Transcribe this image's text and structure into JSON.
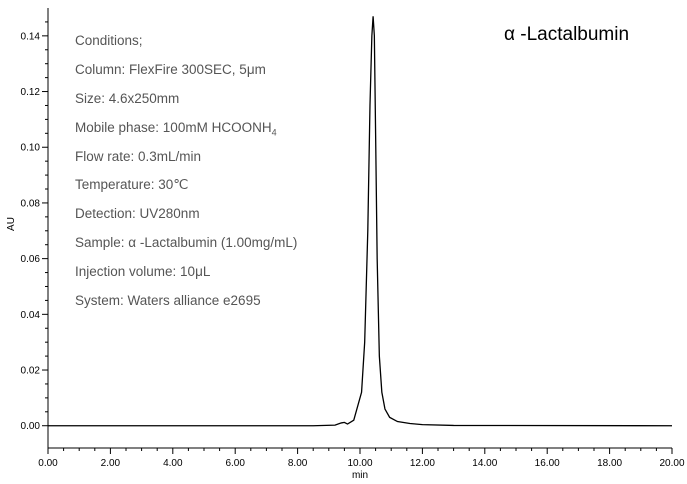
{
  "chart_data": {
    "type": "line",
    "title": "α -Lactalbumin",
    "xlabel": "min",
    "ylabel": "AU",
    "xlim": [
      0,
      20
    ],
    "ylim": [
      -0.008,
      0.15
    ],
    "x_ticks": [
      "0.00",
      "2.00",
      "4.00",
      "6.00",
      "8.00",
      "10.00",
      "12.00",
      "14.00",
      "16.00",
      "18.00",
      "20.00"
    ],
    "y_ticks": [
      "0.00",
      "0.02",
      "0.04",
      "0.06",
      "0.08",
      "0.10",
      "0.12",
      "0.14"
    ],
    "x_tick_values": [
      0,
      2,
      4,
      6,
      8,
      10,
      12,
      14,
      16,
      18,
      20
    ],
    "y_tick_values": [
      0,
      0.02,
      0.04,
      0.06,
      0.08,
      0.1,
      0.12,
      0.14
    ],
    "grid": false,
    "series": [
      {
        "x": [
          0,
          8.5,
          9.2,
          9.4,
          9.5,
          9.6,
          9.8,
          9.95,
          10.05,
          10.15,
          10.25,
          10.32,
          10.38,
          10.42,
          10.46,
          10.5,
          10.55,
          10.62,
          10.7,
          10.8,
          10.95,
          11.2,
          11.6,
          12.0,
          13.0,
          20.0
        ],
        "y": [
          0,
          0,
          0.0002,
          0.001,
          0.0012,
          0.0006,
          0.002,
          0.008,
          0.012,
          0.03,
          0.07,
          0.115,
          0.14,
          0.147,
          0.14,
          0.105,
          0.06,
          0.025,
          0.012,
          0.006,
          0.003,
          0.0015,
          0.0008,
          0.0004,
          0.0001,
          0
        ]
      }
    ]
  },
  "conditions": {
    "heading": "Conditions;",
    "column": "Column: FlexFire 300SEC, 5μm",
    "size": "Size: 4.6x250mm",
    "mobile_phase": "Mobile phase: 100mM HCOONH",
    "mobile_phase_sub": "4",
    "flow_rate": "Flow rate: 0.3mL/min",
    "temperature": "Temperature: 30℃",
    "detection": "Detection: UV280nm",
    "sample": "Sample:  α -Lactalbumin (1.00mg/mL)",
    "injection": "Injection volume: 10μL",
    "system": " System: Waters alliance e2695"
  },
  "colors": {
    "line": "#000000",
    "axis": "#000000",
    "text": "#555555"
  }
}
